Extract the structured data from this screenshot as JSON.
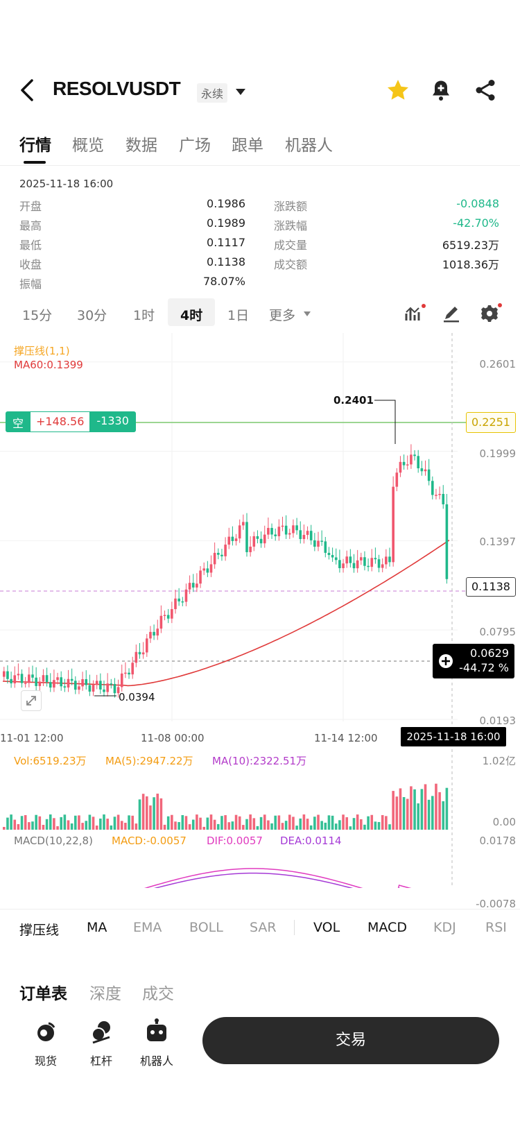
{
  "header": {
    "symbol": "RESOLVUSDT",
    "badge": "永续",
    "icons": [
      "back-arrow-icon",
      "star-icon",
      "bell-add-icon",
      "share-icon"
    ]
  },
  "tabs": [
    "行情",
    "概览",
    "数据",
    "广场",
    "跟单",
    "机器人"
  ],
  "stats": {
    "time": "2025-11-18 16:00",
    "left": [
      {
        "label": "开盘",
        "value": "0.1986"
      },
      {
        "label": "最高",
        "value": "0.1989"
      },
      {
        "label": "最低",
        "value": "0.1117"
      },
      {
        "label": "收盘",
        "value": "0.1138"
      },
      {
        "label": "振幅",
        "value": "78.07%"
      }
    ],
    "right": [
      {
        "label": "涨跌额",
        "value": "-0.0848"
      },
      {
        "label": "涨跌幅",
        "value": "-42.70%"
      },
      {
        "label": "成交量",
        "value": "6519.23万"
      },
      {
        "label": "成交额",
        "value": "1018.36万"
      }
    ]
  },
  "intervals": [
    "15分",
    "30分",
    "1时",
    "4时",
    "1日",
    "更多"
  ],
  "chart": {
    "indicator_sup": "撑压线(1,1)",
    "indicator_ma": "MA60:0.1399",
    "y_ticks": [
      "0.2601",
      "0.1999",
      "0.1397",
      "0.0795",
      "0.0193"
    ],
    "x_ticks": [
      "11-01 12:00",
      "11-08 00:00",
      "11-14 12:00"
    ],
    "crosshair_time": "2025-11-18 16:00",
    "high_label": "0.2401",
    "low_label": "0.0394",
    "support_value": "0.2251",
    "last_price": "0.1138",
    "crosshair_price": "0.0629",
    "crosshair_pct": "-44.72 %",
    "position": {
      "side": "空",
      "pnl": "+148.56",
      "qty": "-1330"
    }
  },
  "volume": {
    "vol": "Vol:6519.23万",
    "ma5": "MA(5):2947.22万",
    "ma10": "MA(10):2322.51万",
    "y_top": "1.02亿",
    "y_bottom": "0.00"
  },
  "macd": {
    "name": "MACD(10,22,8)",
    "macd": "MACD:-0.0057",
    "dif": "DIF:0.0057",
    "dea": "DEA:0.0114",
    "y_top": "0.0178",
    "y_bottom": "-0.0078"
  },
  "indicators": [
    "撑压线",
    "MA",
    "EMA",
    "BOLL",
    "SAR",
    "VOL",
    "MACD",
    "KDJ",
    "RSI"
  ],
  "bottom_tabs": [
    "订单表",
    "深度",
    "成交"
  ],
  "bottom_actions": [
    "现货",
    "杠杆",
    "机器人"
  ],
  "trade_label": "交易",
  "colors": {
    "up": "#f0566d",
    "down": "#1fb88a",
    "ma60": "#e03a3a",
    "support": "#7bc96f"
  }
}
